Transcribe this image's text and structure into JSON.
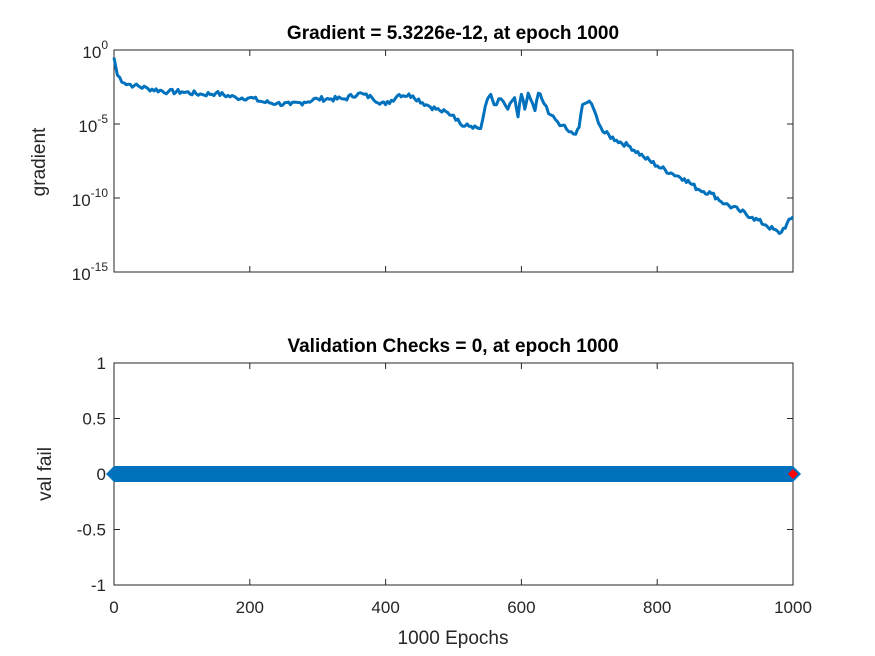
{
  "chart_data": [
    {
      "type": "line",
      "title": "Gradient = 5.3226e-12, at epoch 1000",
      "ylabel": "gradient",
      "xlabel": "",
      "yscale": "log",
      "xlim": [
        0,
        1000
      ],
      "ylim_exp": [
        -15,
        0
      ],
      "ytick_labels": [
        {
          "base": "10",
          "exp": "0"
        },
        {
          "base": "10",
          "exp": "-5"
        },
        {
          "base": "10",
          "exp": "-10"
        },
        {
          "base": "10",
          "exp": "-15"
        }
      ],
      "ytick_exps": [
        0,
        -5,
        -10,
        -15
      ],
      "xticks": [
        0,
        200,
        400,
        600,
        800,
        1000
      ],
      "grid": false,
      "color": "#0072BD",
      "series": [
        {
          "x": [
            0,
            5,
            15,
            30,
            50,
            80,
            100,
            130,
            150,
            180,
            200,
            220,
            240,
            260,
            280,
            300,
            320,
            340,
            360,
            380,
            400,
            420,
            440,
            460,
            480,
            500,
            510,
            520,
            540,
            550,
            555,
            560,
            570,
            580,
            590,
            595,
            600,
            605,
            610,
            620,
            625,
            630,
            640,
            650,
            660,
            670,
            680,
            685,
            690,
            700,
            710,
            720,
            740,
            760,
            780,
            800,
            820,
            840,
            860,
            880,
            900,
            920,
            940,
            960,
            980,
            1000
          ],
          "y": [
            0.3,
            0.02,
            0.006,
            0.004,
            0.0025,
            0.0015,
            0.0015,
            0.001,
            0.0012,
            0.0006,
            0.0006,
            0.0003,
            0.00025,
            0.0002,
            0.0003,
            0.0005,
            0.0005,
            0.0005,
            0.0012,
            0.0006,
            0.0002,
            0.001,
            0.0008,
            0.0002,
            8e-05,
            4e-05,
            1e-05,
            1e-05,
            5e-06,
            0.0005,
            0.001,
            0.0002,
            0.0005,
            0.0001,
            0.0006,
            3e-05,
            0.001,
            0.0001,
            0.0012,
            8e-05,
            0.0012,
            0.0005,
            5e-05,
            2e-05,
            8e-06,
            3e-06,
            2e-06,
            6e-06,
            0.0002,
            0.00035,
            4e-05,
            3e-06,
            8e-07,
            3e-07,
            6e-08,
            1.5e-08,
            5e-09,
            2e-09,
            4e-10,
            2e-10,
            4e-11,
            1.5e-11,
            5e-12,
            1.5e-12,
            4e-13,
            5.3226e-12
          ]
        }
      ]
    },
    {
      "type": "line",
      "title": "Validation Checks = 0, at epoch 1000",
      "ylabel": "val fail",
      "xlabel": "1000 Epochs",
      "xlim": [
        0,
        1000
      ],
      "ylim": [
        -1,
        1
      ],
      "yticks": [
        1,
        0.5,
        0,
        -0.5,
        -1
      ],
      "ytick_labels": [
        "1",
        "0.5",
        "0",
        "-0.5",
        "-1"
      ],
      "xticks": [
        0,
        200,
        400,
        600,
        800,
        1000
      ],
      "xtick_labels": [
        "0",
        "200",
        "400",
        "600",
        "800",
        "1000"
      ],
      "grid": false,
      "color": "#0072BD",
      "best_marker_color": "#FF0000",
      "series": [
        {
          "x": [
            0,
            1000
          ],
          "y": [
            0,
            0
          ],
          "markers": "diamond"
        }
      ],
      "best_point": {
        "x": 1000,
        "y": 0
      }
    }
  ]
}
